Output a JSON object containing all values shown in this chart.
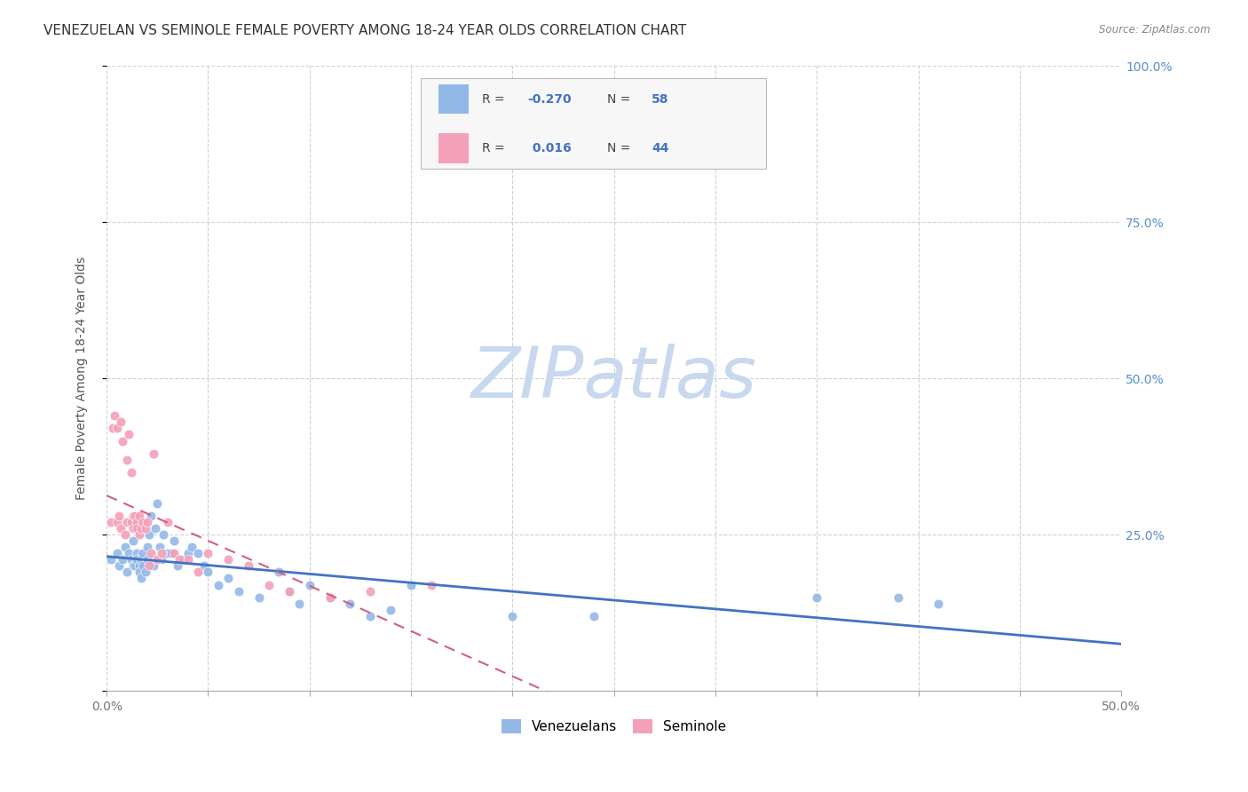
{
  "title": "VENEZUELAN VS SEMINOLE FEMALE POVERTY AMONG 18-24 YEAR OLDS CORRELATION CHART",
  "source": "Source: ZipAtlas.com",
  "ylabel": "Female Poverty Among 18-24 Year Olds",
  "xlim": [
    0.0,
    0.5
  ],
  "ylim": [
    0.0,
    1.0
  ],
  "yticks": [
    0.0,
    0.25,
    0.5,
    0.75,
    1.0
  ],
  "ytick_labels": [
    "",
    "25.0%",
    "50.0%",
    "75.0%",
    "100.0%"
  ],
  "background_color": "#ffffff",
  "watermark": "ZIPatlas",
  "watermark_color": "#c8d8ee",
  "venezuelan_color": "#92b8e8",
  "seminole_color": "#f4a0b8",
  "venezuelan_line_color": "#4472c4",
  "seminole_line_color": "#d06080",
  "R_venezuelan": -0.27,
  "N_venezuelan": 58,
  "R_seminole": 0.016,
  "N_seminole": 44,
  "venezuelan_x": [
    0.002,
    0.005,
    0.006,
    0.008,
    0.009,
    0.01,
    0.011,
    0.012,
    0.013,
    0.013,
    0.014,
    0.015,
    0.015,
    0.016,
    0.016,
    0.017,
    0.017,
    0.018,
    0.018,
    0.019,
    0.02,
    0.02,
    0.021,
    0.022,
    0.023,
    0.024,
    0.025,
    0.026,
    0.027,
    0.028,
    0.03,
    0.032,
    0.033,
    0.035,
    0.038,
    0.04,
    0.042,
    0.045,
    0.048,
    0.05,
    0.055,
    0.06,
    0.065,
    0.075,
    0.085,
    0.09,
    0.095,
    0.1,
    0.11,
    0.12,
    0.13,
    0.14,
    0.15,
    0.2,
    0.24,
    0.35,
    0.39,
    0.41
  ],
  "venezuelan_y": [
    0.21,
    0.22,
    0.2,
    0.21,
    0.23,
    0.19,
    0.22,
    0.21,
    0.2,
    0.24,
    0.2,
    0.22,
    0.21,
    0.2,
    0.19,
    0.21,
    0.18,
    0.22,
    0.2,
    0.19,
    0.21,
    0.23,
    0.25,
    0.28,
    0.2,
    0.26,
    0.3,
    0.23,
    0.21,
    0.25,
    0.22,
    0.22,
    0.24,
    0.2,
    0.21,
    0.22,
    0.23,
    0.22,
    0.2,
    0.19,
    0.17,
    0.18,
    0.16,
    0.15,
    0.19,
    0.16,
    0.14,
    0.17,
    0.15,
    0.14,
    0.12,
    0.13,
    0.17,
    0.12,
    0.12,
    0.15,
    0.15,
    0.14
  ],
  "seminole_x": [
    0.002,
    0.003,
    0.004,
    0.005,
    0.005,
    0.006,
    0.007,
    0.007,
    0.008,
    0.009,
    0.01,
    0.01,
    0.011,
    0.012,
    0.012,
    0.013,
    0.013,
    0.014,
    0.015,
    0.015,
    0.016,
    0.016,
    0.017,
    0.018,
    0.019,
    0.02,
    0.021,
    0.022,
    0.023,
    0.025,
    0.027,
    0.03,
    0.033,
    0.036,
    0.04,
    0.045,
    0.05,
    0.06,
    0.07,
    0.08,
    0.09,
    0.11,
    0.13,
    0.16
  ],
  "seminole_y": [
    0.27,
    0.42,
    0.44,
    0.27,
    0.42,
    0.28,
    0.26,
    0.43,
    0.4,
    0.25,
    0.37,
    0.27,
    0.41,
    0.35,
    0.27,
    0.28,
    0.26,
    0.28,
    0.27,
    0.26,
    0.25,
    0.28,
    0.26,
    0.27,
    0.26,
    0.27,
    0.2,
    0.22,
    0.38,
    0.21,
    0.22,
    0.27,
    0.22,
    0.21,
    0.21,
    0.19,
    0.22,
    0.21,
    0.2,
    0.17,
    0.16,
    0.15,
    0.16,
    0.17
  ],
  "grid_color": "#cccccc",
  "title_fontsize": 11,
  "axis_label_fontsize": 10,
  "tick_fontsize": 10,
  "marker_size": 60
}
